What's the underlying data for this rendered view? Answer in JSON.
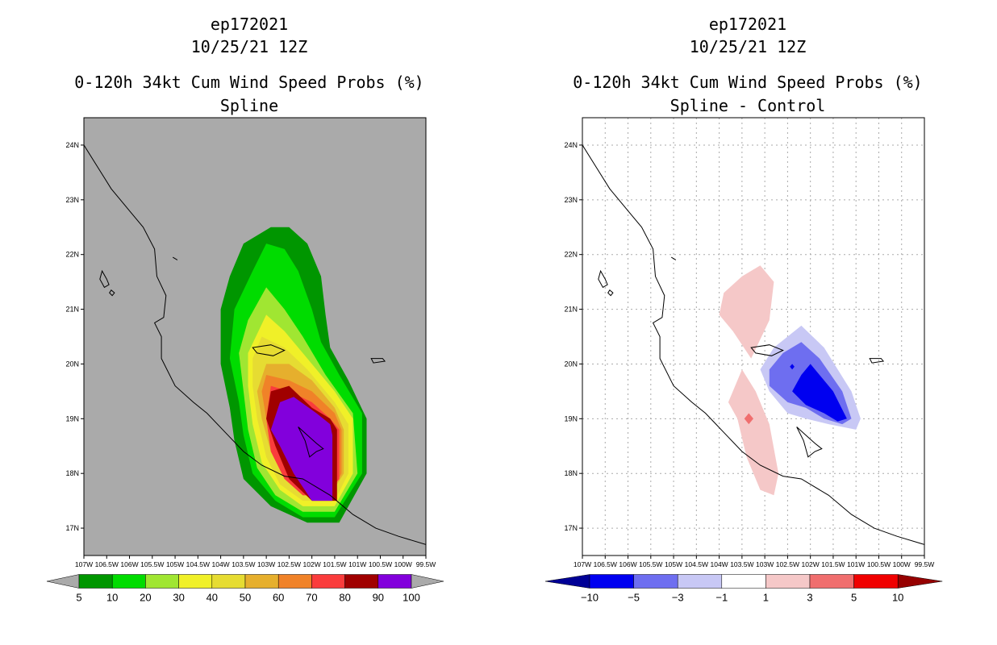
{
  "colors": {
    "c5": "#009600",
    "c10": "#00dc00",
    "c20": "#a0e632",
    "c30": "#f0f028",
    "c40": "#e6dc32",
    "c50": "#e6af2d",
    "c60": "#f08228",
    "c70": "#fa3c3c",
    "c80": "#a00000",
    "c90": "#8200dc",
    "bg": "#aaaaaa",
    "n10": "#000096",
    "n5": "#0000f0",
    "n3": "#6e6ef0",
    "n1": "#c8c8f5",
    "zero": "#ffffff",
    "p1": "#f5c8c8",
    "p3": "#f06e6e",
    "p5": "#f00000",
    "p10": "#960000"
  },
  "chart_data": [
    {
      "type": "heatmap",
      "storm": "ep172021",
      "date": "10/25/21 12Z",
      "title": "0-120h 34kt Cum Wind Speed Probs (%)",
      "subtitle": "Spline",
      "xlim": [
        -107,
        -99.5
      ],
      "ylim": [
        16.5,
        24.5
      ],
      "xticks": [
        "107W",
        "106.5W",
        "106W",
        "105.5W",
        "105W",
        "104.5W",
        "104W",
        "103.5W",
        "103W",
        "102.5W",
        "102W",
        "101.5W",
        "101W",
        "100.5W",
        "100W",
        "99.5W"
      ],
      "yticks": [
        "17N",
        "18N",
        "19N",
        "20N",
        "21N",
        "22N",
        "23N",
        "24N"
      ],
      "colorbar_levels": [
        "5",
        "10",
        "20",
        "30",
        "40",
        "50",
        "60",
        "70",
        "80",
        "90",
        "100"
      ],
      "contours": [
        {
          "level": 5,
          "points": [
            [
              -102.9,
              22.5
            ],
            [
              -102.5,
              22.5
            ],
            [
              -102.1,
              22.2
            ],
            [
              -101.8,
              21.6
            ],
            [
              -101.7,
              20.9
            ],
            [
              -101.6,
              20.3
            ],
            [
              -101.2,
              19.7
            ],
            [
              -100.8,
              19.0
            ],
            [
              -100.8,
              18.0
            ],
            [
              -101.4,
              17.1
            ],
            [
              -102.1,
              17.1
            ],
            [
              -102.9,
              17.4
            ],
            [
              -103.5,
              17.9
            ],
            [
              -103.7,
              18.6
            ],
            [
              -103.8,
              19.2
            ],
            [
              -104.0,
              20.0
            ],
            [
              -104.0,
              21.0
            ],
            [
              -103.8,
              21.6
            ],
            [
              -103.5,
              22.2
            ]
          ]
        },
        {
          "level": 10,
          "points": [
            [
              -103.0,
              22.2
            ],
            [
              -102.6,
              22.1
            ],
            [
              -102.3,
              21.7
            ],
            [
              -102.0,
              21.0
            ],
            [
              -101.8,
              20.4
            ],
            [
              -101.4,
              19.8
            ],
            [
              -100.9,
              19.1
            ],
            [
              -100.9,
              18.0
            ],
            [
              -101.5,
              17.2
            ],
            [
              -102.2,
              17.2
            ],
            [
              -102.8,
              17.5
            ],
            [
              -103.3,
              18.0
            ],
            [
              -103.5,
              18.7
            ],
            [
              -103.6,
              19.3
            ],
            [
              -103.8,
              20.1
            ],
            [
              -103.7,
              21.0
            ],
            [
              -103.3,
              21.7
            ]
          ]
        },
        {
          "level": 20,
          "points": [
            [
              -103.0,
              21.4
            ],
            [
              -102.6,
              21.0
            ],
            [
              -102.2,
              20.5
            ],
            [
              -101.7,
              19.8
            ],
            [
              -101.1,
              19.1
            ],
            [
              -101.0,
              18.0
            ],
            [
              -101.5,
              17.3
            ],
            [
              -102.2,
              17.3
            ],
            [
              -102.8,
              17.6
            ],
            [
              -103.2,
              18.1
            ],
            [
              -103.4,
              18.8
            ],
            [
              -103.5,
              19.5
            ],
            [
              -103.6,
              20.2
            ],
            [
              -103.4,
              20.8
            ]
          ]
        },
        {
          "level": 30,
          "points": [
            [
              -103.0,
              20.9
            ],
            [
              -102.6,
              20.6
            ],
            [
              -102.1,
              20.1
            ],
            [
              -101.5,
              19.5
            ],
            [
              -101.1,
              19.0
            ],
            [
              -101.1,
              18.0
            ],
            [
              -101.5,
              17.4
            ],
            [
              -102.2,
              17.4
            ],
            [
              -102.7,
              17.7
            ],
            [
              -103.1,
              18.2
            ],
            [
              -103.3,
              18.9
            ],
            [
              -103.4,
              19.6
            ],
            [
              -103.4,
              20.2
            ]
          ]
        },
        {
          "level": 40,
          "points": [
            [
              -103.1,
              20.5
            ],
            [
              -102.6,
              20.3
            ],
            [
              -102.1,
              19.9
            ],
            [
              -101.5,
              19.3
            ],
            [
              -101.2,
              18.9
            ],
            [
              -101.2,
              18.0
            ],
            [
              -101.5,
              17.5
            ],
            [
              -102.2,
              17.5
            ],
            [
              -102.7,
              17.8
            ],
            [
              -103.0,
              18.3
            ],
            [
              -103.2,
              19.0
            ],
            [
              -103.3,
              19.6
            ],
            [
              -103.3,
              20.1
            ]
          ]
        },
        {
          "level": 50,
          "points": [
            [
              -103.0,
              20.0
            ],
            [
              -102.5,
              20.0
            ],
            [
              -102.0,
              19.7
            ],
            [
              -101.5,
              19.2
            ],
            [
              -101.3,
              18.8
            ],
            [
              -101.3,
              18.0
            ],
            [
              -101.6,
              17.6
            ],
            [
              -102.2,
              17.6
            ],
            [
              -102.6,
              17.9
            ],
            [
              -102.9,
              18.4
            ],
            [
              -103.1,
              19.0
            ],
            [
              -103.2,
              19.5
            ]
          ]
        },
        {
          "level": 60,
          "points": [
            [
              -103.0,
              19.8
            ],
            [
              -102.5,
              19.7
            ],
            [
              -102.0,
              19.5
            ],
            [
              -101.5,
              19.1
            ],
            [
              -101.35,
              18.8
            ],
            [
              -101.35,
              18.0
            ],
            [
              -101.6,
              17.6
            ],
            [
              -102.2,
              17.6
            ],
            [
              -102.6,
              17.9
            ],
            [
              -102.9,
              18.4
            ],
            [
              -103.0,
              19.0
            ],
            [
              -103.1,
              19.5
            ]
          ]
        },
        {
          "level": 70,
          "points": [
            [
              -102.9,
              19.6
            ],
            [
              -102.5,
              19.5
            ],
            [
              -102.0,
              19.3
            ],
            [
              -101.6,
              19.0
            ],
            [
              -101.4,
              18.8
            ],
            [
              -101.4,
              17.9
            ],
            [
              -101.7,
              17.6
            ],
            [
              -102.2,
              17.6
            ],
            [
              -102.6,
              17.9
            ],
            [
              -102.9,
              18.4
            ],
            [
              -103.0,
              19.0
            ]
          ]
        },
        {
          "level": 80,
          "points": [
            [
              -102.9,
              19.5
            ],
            [
              -102.5,
              19.6
            ],
            [
              -102.0,
              19.2
            ],
            [
              -101.6,
              19.0
            ],
            [
              -101.45,
              18.8
            ],
            [
              -101.45,
              17.5
            ],
            [
              -102.0,
              17.5
            ],
            [
              -102.5,
              17.9
            ],
            [
              -102.8,
              18.5
            ],
            [
              -103.0,
              19.0
            ]
          ]
        },
        {
          "level": 90,
          "points": [
            [
              -102.7,
              19.3
            ],
            [
              -102.4,
              19.4
            ],
            [
              -101.9,
              19.1
            ],
            [
              -101.6,
              18.9
            ],
            [
              -101.55,
              18.7
            ],
            [
              -101.55,
              17.5
            ],
            [
              -102.0,
              17.5
            ],
            [
              -102.4,
              18.0
            ],
            [
              -102.7,
              18.5
            ],
            [
              -102.9,
              18.8
            ]
          ]
        }
      ]
    },
    {
      "type": "heatmap",
      "storm": "ep172021",
      "date": "10/25/21 12Z",
      "title": "0-120h 34kt Cum Wind Speed Probs (%)",
      "subtitle": "Spline - Control",
      "xlim": [
        -107,
        -99.5
      ],
      "ylim": [
        16.5,
        24.5
      ],
      "xticks": [
        "107W",
        "106.5W",
        "106W",
        "105.5W",
        "105W",
        "104.5W",
        "104W",
        "103.5W",
        "103W",
        "102.5W",
        "102W",
        "101.5W",
        "101W",
        "100.5W",
        "100W",
        "99.5W"
      ],
      "yticks": [
        "17N",
        "18N",
        "19N",
        "20N",
        "21N",
        "22N",
        "23N",
        "24N"
      ],
      "colorbar_levels": [
        "-10",
        "-5",
        "-3",
        "-1",
        "1",
        "3",
        "5",
        "10"
      ],
      "contours": [
        {
          "level": 1,
          "points": [
            [
              -103.1,
              21.8
            ],
            [
              -102.8,
              21.5
            ],
            [
              -102.9,
              20.8
            ],
            [
              -103.3,
              20.1
            ],
            [
              -103.7,
              20.6
            ],
            [
              -104.0,
              20.9
            ],
            [
              -103.9,
              21.3
            ],
            [
              -103.5,
              21.6
            ]
          ]
        },
        {
          "level": 1,
          "points": [
            [
              -103.5,
              19.9
            ],
            [
              -103.2,
              19.5
            ],
            [
              -102.9,
              18.9
            ],
            [
              -102.7,
              18.0
            ],
            [
              -102.8,
              17.6
            ],
            [
              -103.1,
              17.7
            ],
            [
              -103.4,
              18.3
            ],
            [
              -103.6,
              19.0
            ],
            [
              -103.8,
              19.3
            ]
          ]
        },
        {
          "level": 3,
          "points": [
            [
              -103.35,
              19.1
            ],
            [
              -103.25,
              19.0
            ],
            [
              -103.35,
              18.9
            ],
            [
              -103.45,
              19.0
            ]
          ]
        },
        {
          "level": -1,
          "points": [
            [
              -102.2,
              20.7
            ],
            [
              -101.7,
              20.3
            ],
            [
              -101.1,
              19.5
            ],
            [
              -100.9,
              19.0
            ],
            [
              -101.0,
              18.8
            ],
            [
              -101.6,
              18.9
            ],
            [
              -102.1,
              19.0
            ],
            [
              -102.5,
              19.1
            ],
            [
              -102.9,
              19.5
            ],
            [
              -103.1,
              19.9
            ],
            [
              -102.8,
              20.3
            ],
            [
              -102.5,
              20.5
            ]
          ]
        },
        {
          "level": -3,
          "points": [
            [
              -102.2,
              20.4
            ],
            [
              -101.8,
              20.1
            ],
            [
              -101.3,
              19.5
            ],
            [
              -101.1,
              19.0
            ],
            [
              -101.3,
              18.9
            ],
            [
              -101.7,
              19.0
            ],
            [
              -102.1,
              19.2
            ],
            [
              -102.5,
              19.3
            ],
            [
              -102.9,
              19.6
            ],
            [
              -102.9,
              19.9
            ],
            [
              -102.6,
              20.2
            ]
          ]
        },
        {
          "level": -5,
          "points": [
            [
              -102.0,
              20.0
            ],
            [
              -101.5,
              19.5
            ],
            [
              -101.2,
              19.0
            ],
            [
              -101.4,
              18.95
            ],
            [
              -101.7,
              19.1
            ],
            [
              -102.1,
              19.25
            ],
            [
              -102.4,
              19.5
            ],
            [
              -102.2,
              19.8
            ]
          ]
        },
        {
          "level": -5,
          "points": [
            [
              -102.4,
              20.0
            ],
            [
              -102.35,
              19.95
            ],
            [
              -102.4,
              19.9
            ],
            [
              -102.45,
              19.95
            ]
          ]
        }
      ]
    }
  ]
}
